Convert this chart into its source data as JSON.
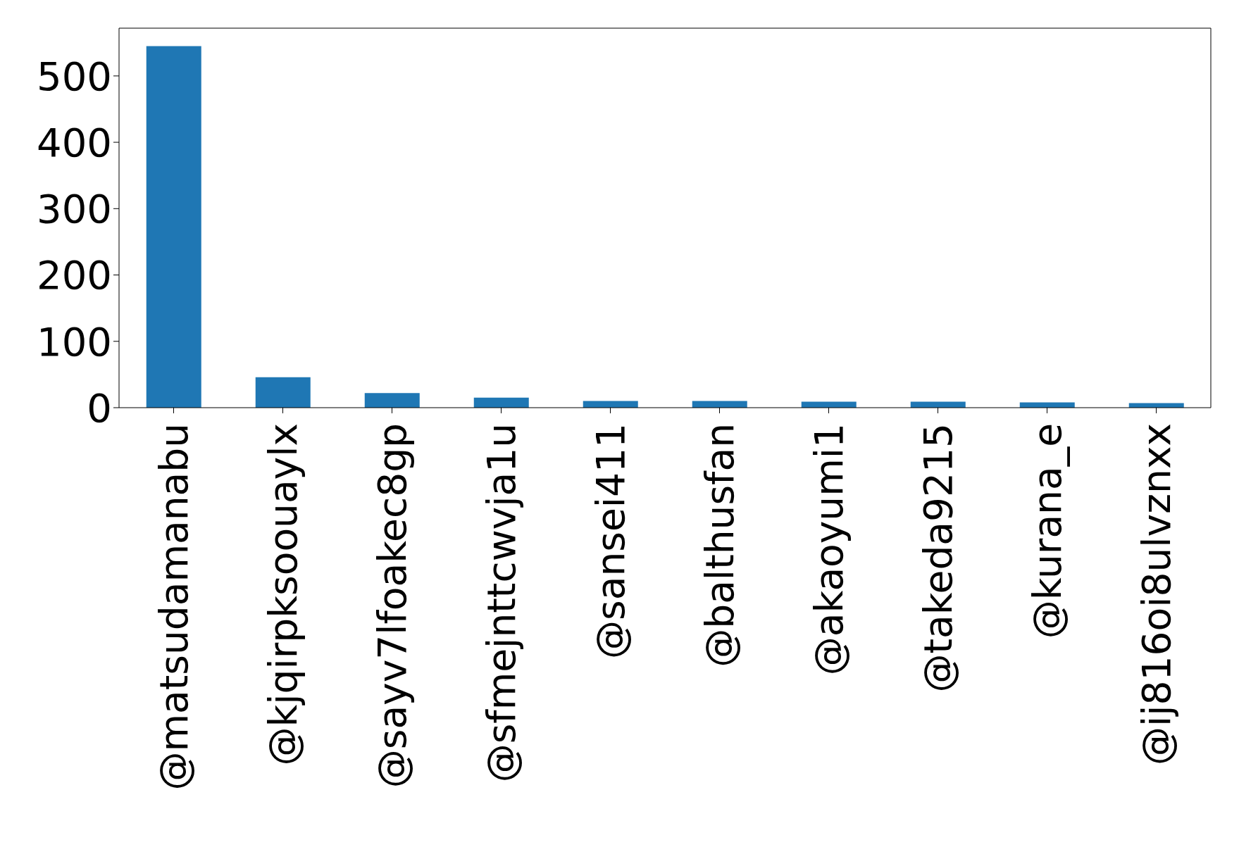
{
  "chart_data": {
    "type": "bar",
    "categories": [
      "@matsudamanabu",
      "@kjqirpksoouaylx",
      "@sayv7lfoakec8gp",
      "@sfmejnttcwvja1u",
      "@sansei411",
      "@balthusfan",
      "@akaoyumi1",
      "@takeda9215",
      "@kurana_e",
      "@ij816oi8ulvznxx"
    ],
    "values": [
      545,
      46,
      22,
      15,
      10,
      10,
      9,
      9,
      8,
      7
    ],
    "color": "#1f77b4",
    "ylim": [
      0,
      572
    ],
    "yticks": [
      0,
      100,
      200,
      300,
      400,
      500
    ],
    "grid": false
  }
}
